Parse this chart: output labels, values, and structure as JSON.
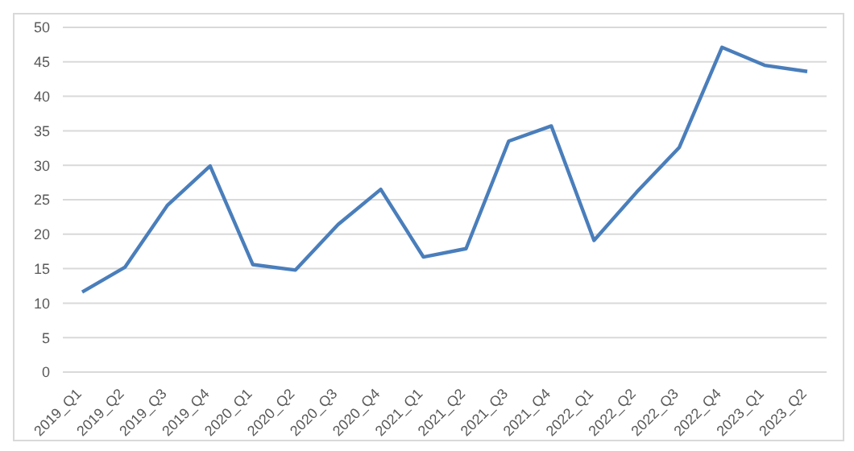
{
  "chart_data": {
    "type": "line",
    "categories": [
      "2019_Q1",
      "2019_Q2",
      "2019_Q3",
      "2019_Q4",
      "2020_Q1",
      "2020_Q2",
      "2020_Q3",
      "2020_Q4",
      "2021_Q1",
      "2021_Q2",
      "2021_Q3",
      "2021_Q4",
      "2022_Q1",
      "2022_Q2",
      "2022_Q3",
      "2022_Q4",
      "2023_Q1",
      "2023_Q2"
    ],
    "series": [
      {
        "color": "#4a7ebb",
        "values": [
          11.6,
          15.2,
          24.2,
          29.9,
          15.6,
          14.8,
          21.4,
          26.5,
          16.7,
          17.9,
          33.5,
          35.7,
          19.1,
          26.1,
          32.6,
          47.1,
          44.5,
          43.6
        ]
      }
    ],
    "ylim": [
      0,
      50
    ],
    "yticks": [
      0,
      5,
      10,
      15,
      20,
      25,
      30,
      35,
      40,
      45,
      50
    ],
    "grid": "y",
    "marker": "none",
    "line_style": "solid",
    "legend": false
  }
}
